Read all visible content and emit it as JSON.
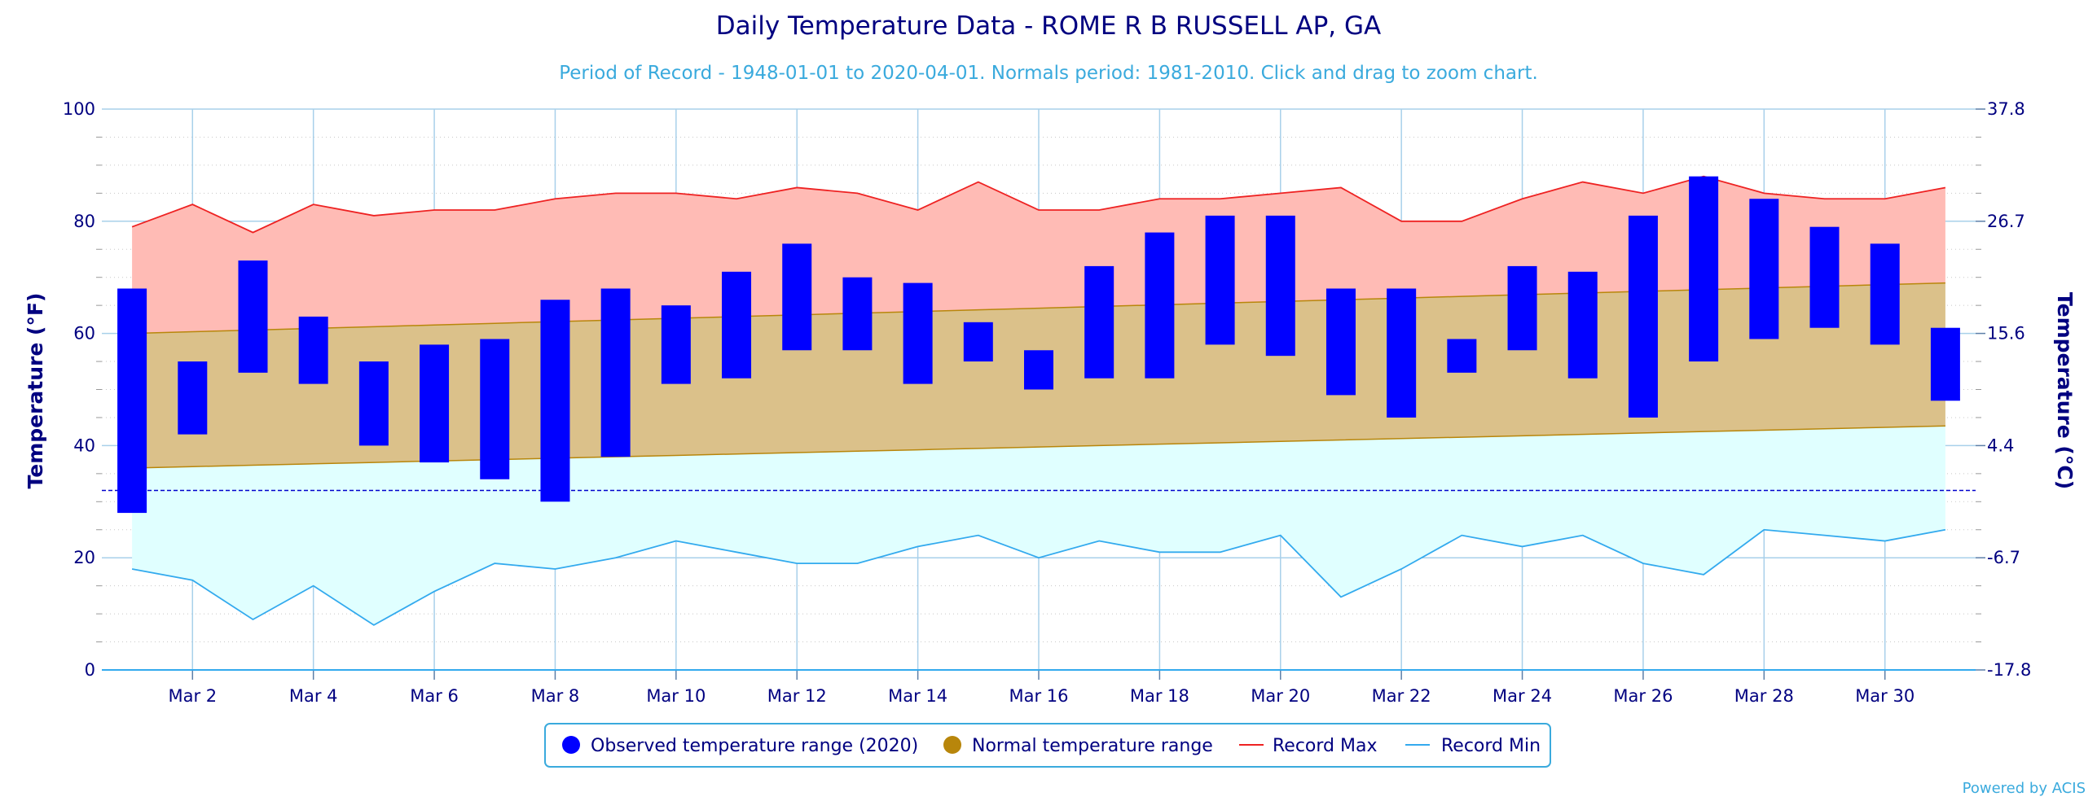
{
  "colors": {
    "observed": "#0000ff",
    "normal": "#b8860b",
    "normal_fill": "#dbc18a",
    "record_max": "#ee2222",
    "record_max_fill": "#ffbbb5",
    "record_min": "#33aaee",
    "record_min_fill": "#e0ffff",
    "freeze_line": "#0000cc",
    "grid": "#a8d0ea",
    "title": "#000080",
    "subtitle": "#3aaadd"
  },
  "legend_icons": {
    "observed": "circle-icon",
    "normal": "circle-icon",
    "record_max": "line-icon",
    "record_min": "line-icon"
  },
  "chart_data": {
    "type": "bar",
    "title": "Daily Temperature Data - ROME R B RUSSELL AP, GA",
    "subtitle": "Period of Record - 1948-01-01 to 2020-04-01. Normals period: 1981-2010. Click and drag to zoom chart.",
    "ylabel": "Temperature (°F)",
    "ylabel_right": "Temperature (°C)",
    "ylim": [
      0,
      100
    ],
    "yticks_left": [
      "0",
      "20",
      "40",
      "60",
      "80",
      "100"
    ],
    "yticks_right": [
      "-17.8",
      "-6.7",
      "4.4",
      "15.6",
      "26.7",
      "37.8"
    ],
    "x_tick_labels": [
      "Mar 2",
      "Mar 4",
      "Mar 6",
      "Mar 8",
      "Mar 10",
      "Mar 12",
      "Mar 14",
      "Mar 16",
      "Mar 18",
      "Mar 20",
      "Mar 22",
      "Mar 24",
      "Mar 26",
      "Mar 28",
      "Mar 30"
    ],
    "days": [
      1,
      2,
      3,
      4,
      5,
      6,
      7,
      8,
      9,
      10,
      11,
      12,
      13,
      14,
      15,
      16,
      17,
      18,
      19,
      20,
      21,
      22,
      23,
      24,
      25,
      26,
      27,
      28,
      29,
      30,
      31
    ],
    "freezing_line": 32,
    "grid": true,
    "legend_position": "bottom-center",
    "series": [
      {
        "name": "Observed temperature range (2020)",
        "type": "columnrange",
        "high": [
          68,
          55,
          73,
          63,
          55,
          58,
          59,
          66,
          68,
          65,
          71,
          76,
          70,
          69,
          62,
          57,
          72,
          78,
          81,
          81,
          68,
          68,
          59,
          72,
          71,
          81,
          88,
          84,
          79,
          76,
          61
        ],
        "low": [
          28,
          42,
          53,
          51,
          40,
          37,
          34,
          30,
          38,
          51,
          52,
          57,
          57,
          51,
          55,
          50,
          52,
          52,
          58,
          56,
          49,
          45,
          53,
          57,
          52,
          45,
          55,
          59,
          61,
          58,
          48
        ]
      },
      {
        "name": "Normal temperature range",
        "type": "arearange",
        "high": [
          60.0,
          60.3,
          60.6,
          60.9,
          61.2,
          61.5,
          61.8,
          62.1,
          62.4,
          62.7,
          63.0,
          63.3,
          63.6,
          63.9,
          64.2,
          64.5,
          64.8,
          65.1,
          65.4,
          65.7,
          66.0,
          66.3,
          66.6,
          66.9,
          67.2,
          67.5,
          67.8,
          68.1,
          68.4,
          68.7,
          69.0
        ],
        "low": [
          36.0,
          36.25,
          36.5,
          36.75,
          37.0,
          37.25,
          37.5,
          37.75,
          38.0,
          38.25,
          38.5,
          38.75,
          39.0,
          39.25,
          39.5,
          39.75,
          40.0,
          40.25,
          40.5,
          40.75,
          41.0,
          41.25,
          41.5,
          41.75,
          42.0,
          42.25,
          42.5,
          42.75,
          43.0,
          43.25,
          43.5
        ]
      },
      {
        "name": "Record Max",
        "type": "line",
        "values": [
          79,
          83,
          78,
          83,
          81,
          82,
          82,
          84,
          85,
          85,
          84,
          86,
          85,
          82,
          87,
          82,
          82,
          84,
          84,
          85,
          86,
          80,
          80,
          84,
          87,
          85,
          88,
          85,
          84,
          84,
          86
        ]
      },
      {
        "name": "Record Min",
        "type": "line",
        "values": [
          18,
          16,
          9,
          15,
          8,
          14,
          19,
          18,
          20,
          23,
          21,
          19,
          19,
          22,
          24,
          20,
          23,
          21,
          21,
          24,
          13,
          18,
          24,
          22,
          24,
          19,
          17,
          25,
          24,
          23,
          25
        ]
      }
    ]
  },
  "legend": {
    "observed": "Observed temperature range (2020)",
    "normal": "Normal temperature range",
    "record_max": "Record Max",
    "record_min": "Record Min"
  },
  "credit": "Powered by ACIS"
}
